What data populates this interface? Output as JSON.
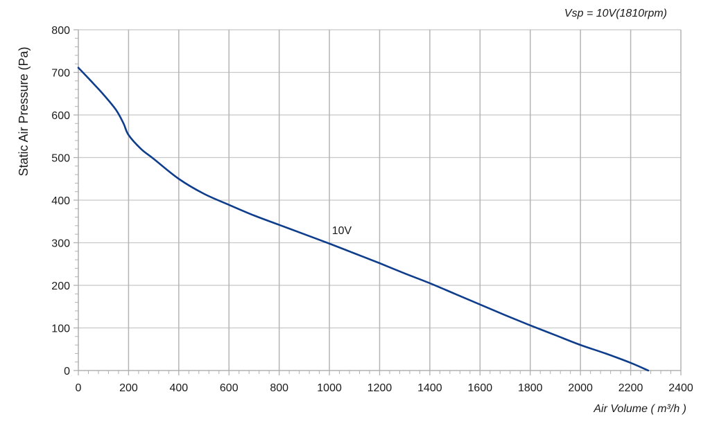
{
  "chart_data": {
    "type": "line",
    "title": "",
    "subtitle": "Vsp = 10V(1810rpm)",
    "xlabel": "Air Volume ( m³/h )",
    "ylabel": "Static Air Pressure  (Pa)",
    "xlim": [
      0,
      2400
    ],
    "ylim": [
      0,
      800
    ],
    "x_ticks": [
      0,
      200,
      400,
      600,
      800,
      1000,
      1200,
      1400,
      1600,
      1800,
      2000,
      2200,
      2400
    ],
    "y_ticks": [
      0,
      100,
      200,
      300,
      400,
      500,
      600,
      700,
      800
    ],
    "x_minor_step": 40,
    "y_minor_step": 20,
    "grid": true,
    "legend": null,
    "series": [
      {
        "name": "10V",
        "color": "#0e3d8c",
        "label_position": {
          "x": 1010,
          "y": 320
        },
        "x": [
          0,
          50,
          100,
          150,
          180,
          200,
          250,
          300,
          400,
          500,
          600,
          700,
          800,
          900,
          1000,
          1100,
          1200,
          1300,
          1400,
          1500,
          1600,
          1700,
          1800,
          1900,
          2000,
          2100,
          2200,
          2270
        ],
        "y": [
          711,
          680,
          648,
          612,
          580,
          553,
          520,
          497,
          450,
          415,
          389,
          364,
          342,
          320,
          298,
          275,
          252,
          228,
          205,
          180,
          155,
          130,
          106,
          83,
          60,
          40,
          18,
          0
        ]
      }
    ]
  },
  "colors": {
    "grid": "#c8c8c8",
    "vgrid": "#b4b4b4",
    "axis": "#b0b0b0",
    "line": "#0e3d8c",
    "text": "#1a1a1a"
  }
}
